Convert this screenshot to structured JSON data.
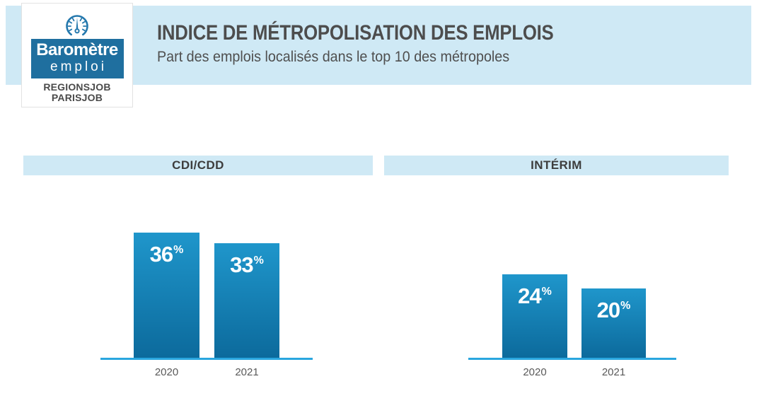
{
  "header": {
    "title": "INDICE DE MÉTROPOLISATION DES EMPLOIS",
    "subtitle": "Part des emplois localisés dans le top 10 des métropoles"
  },
  "logo": {
    "icon": "gauge-icon",
    "line1": "Baromètre",
    "line2": "emploi",
    "line3": "REGIONSJOB",
    "line4": "PARISJOB"
  },
  "colors": {
    "band_blue": "#cfe9f5",
    "bar_gradient_top": "#1f96cb",
    "bar_gradient_bottom": "#0c6a9c",
    "axis_blue": "#2aa6df",
    "logo_blue": "#1f6f9f",
    "title_text": "#4d4d4d"
  },
  "chart_data": [
    {
      "type": "bar",
      "title": "CDI/CDD",
      "categories": [
        "2020",
        "2021"
      ],
      "values": [
        36,
        33
      ],
      "unit": "%",
      "value_labels": [
        "36%",
        "33%"
      ],
      "ylabel": "",
      "xlabel": "",
      "grid": false,
      "legend": false
    },
    {
      "type": "bar",
      "title": "INTÉRIM",
      "categories": [
        "2020",
        "2021"
      ],
      "values": [
        24,
        20
      ],
      "unit": "%",
      "value_labels": [
        "24%",
        "20%"
      ],
      "ylabel": "",
      "xlabel": "",
      "grid": false,
      "legend": false
    }
  ]
}
